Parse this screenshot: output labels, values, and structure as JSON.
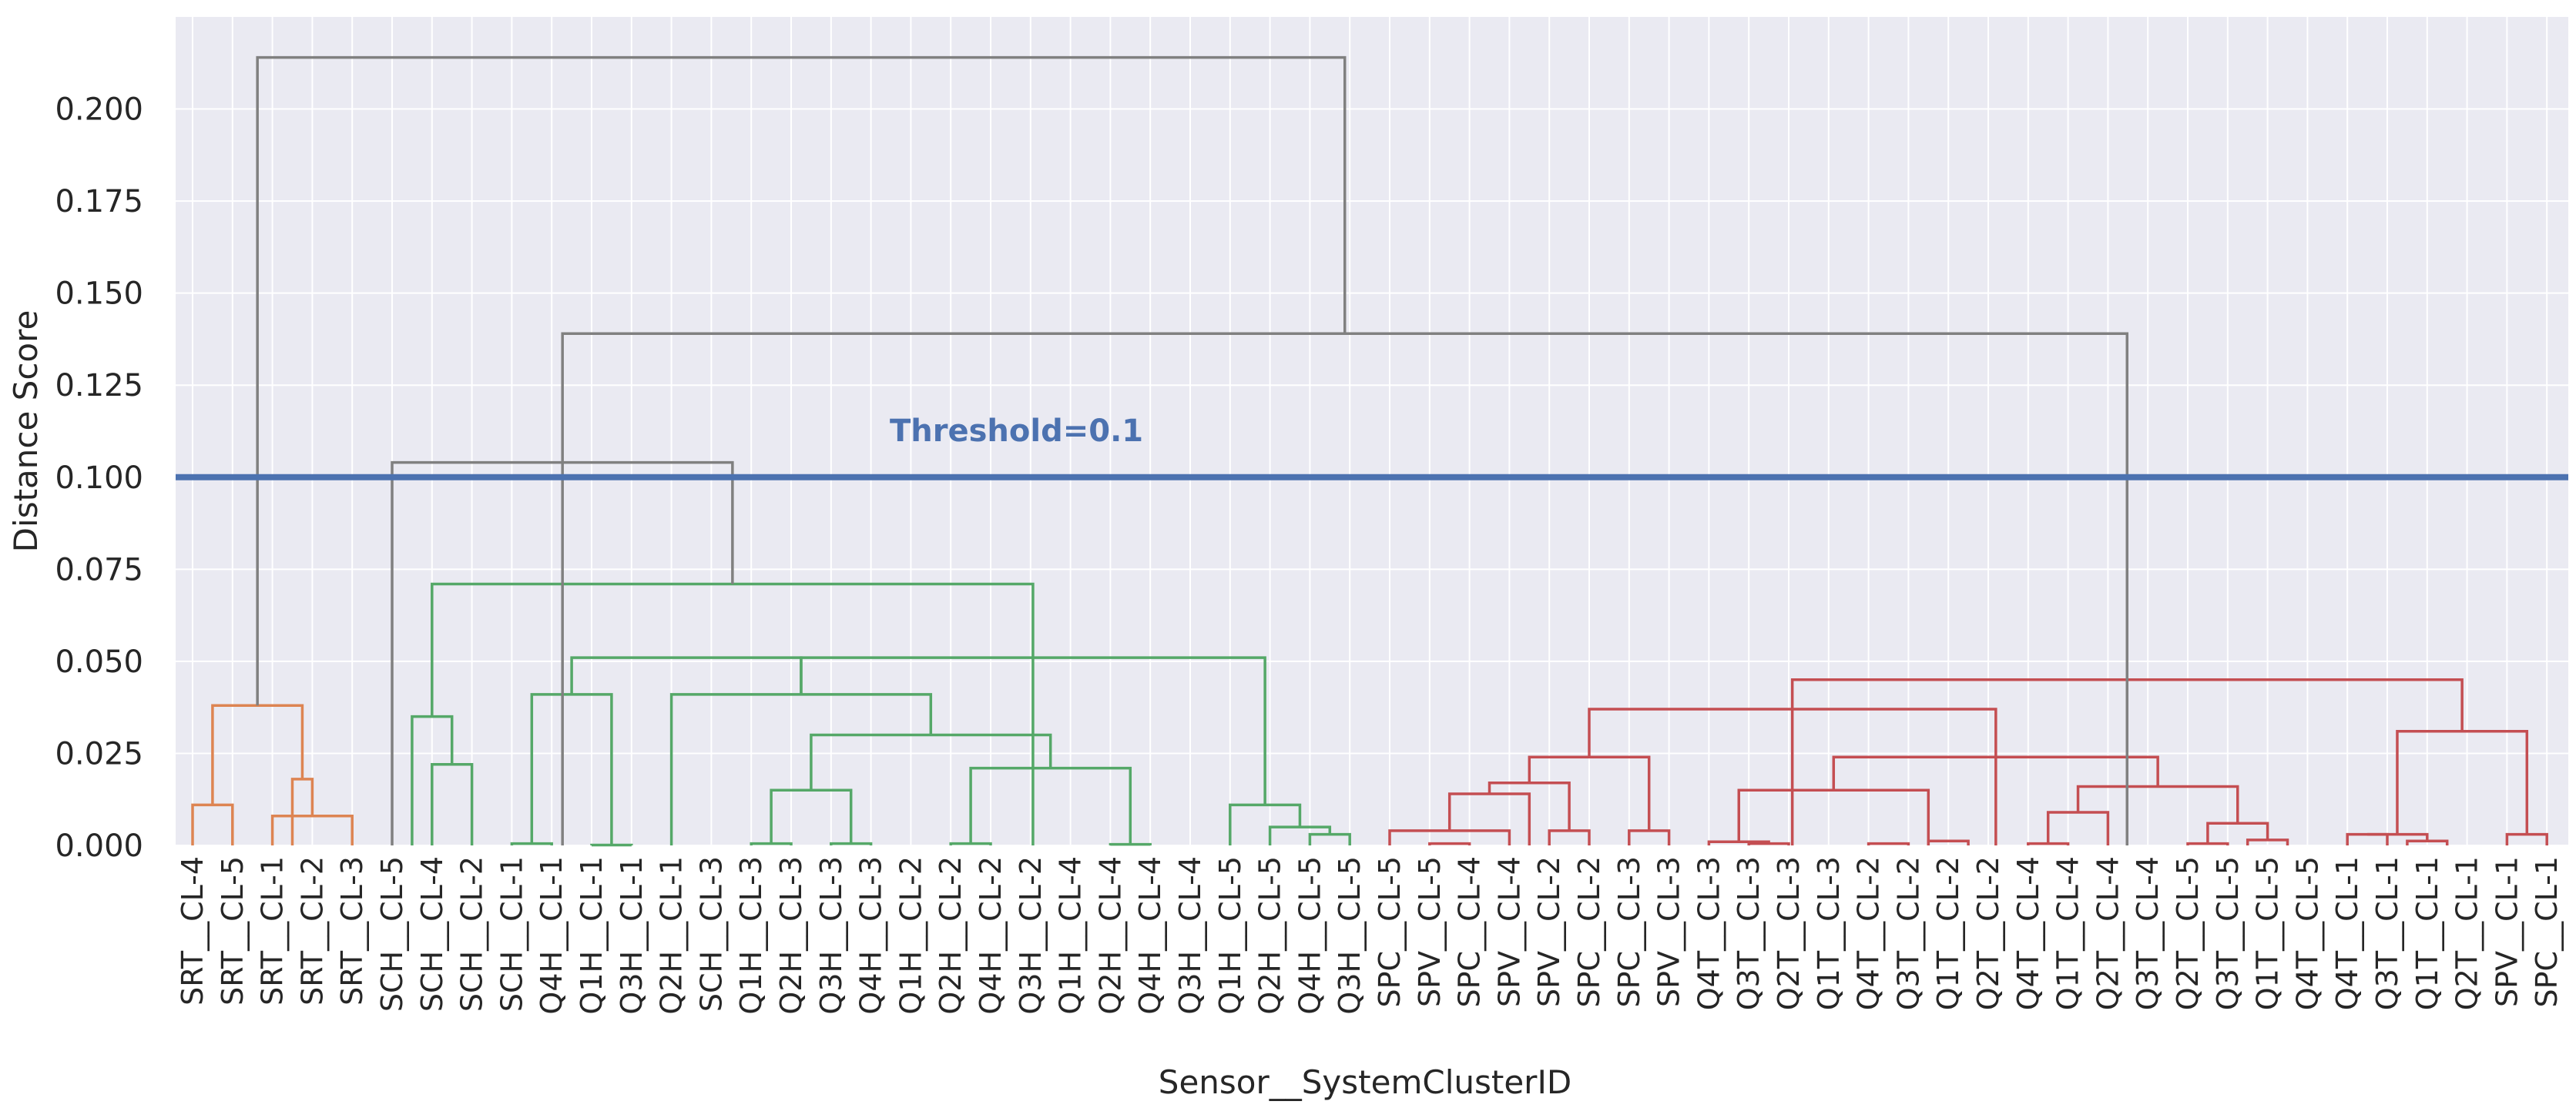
{
  "chart_data": {
    "type": "dendrogram",
    "xlabel": "Sensor__SystemClusterID",
    "ylabel": "Distance Score",
    "ylim": [
      0,
      0.225
    ],
    "yticks": [
      "0.000",
      "0.025",
      "0.050",
      "0.075",
      "0.100",
      "0.125",
      "0.150",
      "0.175",
      "0.200"
    ],
    "grid": true,
    "threshold": {
      "value": 0.1,
      "label": "Threshold=0.1",
      "color": "#4c72b0"
    },
    "colors": {
      "orange": "#dd8452",
      "green": "#55a868",
      "red": "#c44e52",
      "gray": "#808080",
      "background": "#eaeaf2"
    },
    "leaves": [
      "SRT__CL-4",
      "SRT__CL-5",
      "SRT__CL-1",
      "SRT__CL-2",
      "SRT__CL-3",
      "SCH__CL-5",
      "SCH__CL-4",
      "SCH__CL-2",
      "SCH__CL-1",
      "Q4H__CL-1",
      "Q1H__CL-1",
      "Q3H__CL-1",
      "Q2H__CL-1",
      "SCH__CL-3",
      "Q1H__CL-3",
      "Q2H__CL-3",
      "Q3H__CL-3",
      "Q4H__CL-3",
      "Q1H__CL-2",
      "Q2H__CL-2",
      "Q4H__CL-2",
      "Q3H__CL-2",
      "Q1H__CL-4",
      "Q2H__CL-4",
      "Q4H__CL-4",
      "Q3H__CL-4",
      "Q1H__CL-5",
      "Q2H__CL-5",
      "Q4H__CL-5",
      "Q3H__CL-5",
      "SPC__CL-5",
      "SPV__CL-5",
      "SPC__CL-4",
      "SPV__CL-4",
      "SPV__CL-2",
      "SPC__CL-2",
      "SPC__CL-3",
      "SPV__CL-3",
      "Q4T__CL-3",
      "Q3T__CL-3",
      "Q2T__CL-3",
      "Q1T__CL-3",
      "Q4T__CL-2",
      "Q3T__CL-2",
      "Q1T__CL-2",
      "Q2T__CL-2",
      "Q4T__CL-4",
      "Q1T__CL-4",
      "Q2T__CL-4",
      "Q3T__CL-4",
      "Q2T__CL-5",
      "Q3T__CL-5",
      "Q1T__CL-5",
      "Q4T__CL-5",
      "Q4T__CL-1",
      "Q3T__CL-1",
      "Q1T__CL-1",
      "Q2T__CL-1",
      "SPV__CL-1",
      "SPC__CL-1"
    ],
    "links": [
      [
        0,
        1,
        0.011,
        "orange"
      ],
      [
        2,
        4,
        0.008,
        "orange"
      ],
      [
        2.5,
        3,
        0.018,
        "orange"
      ],
      [
        0.5,
        2.75,
        0.038,
        "orange"
      ],
      [
        8,
        9,
        0.0005,
        "green"
      ],
      [
        10,
        11,
        0.0001,
        "green"
      ],
      [
        8.5,
        10.5,
        0.041,
        "green"
      ],
      [
        14,
        15,
        0.0005,
        "green"
      ],
      [
        16,
        17,
        0.0005,
        "green"
      ],
      [
        14.5,
        16.5,
        0.015,
        "green"
      ],
      [
        19,
        20,
        0.0005,
        "green"
      ],
      [
        23,
        24,
        0.0003,
        "green"
      ],
      [
        19.5,
        23.5,
        0.021,
        "green"
      ],
      [
        15.5,
        21.5,
        0.03,
        "green"
      ],
      [
        12,
        18.5,
        0.041,
        "green"
      ],
      [
        9.5,
        15.25,
        0.051,
        "green"
      ],
      [
        28,
        29,
        0.003,
        "green"
      ],
      [
        27,
        28.5,
        0.005,
        "green"
      ],
      [
        26,
        27.75,
        0.011,
        "green"
      ],
      [
        15.25,
        26.875,
        0.051,
        "green"
      ],
      [
        6,
        7,
        0.022,
        "green"
      ],
      [
        5.5,
        6.5,
        0.035,
        "green"
      ],
      [
        6,
        21.06,
        0.071,
        "green"
      ],
      [
        5,
        13.53,
        0.104,
        "gray"
      ],
      [
        31,
        32,
        0.0005,
        "red"
      ],
      [
        30,
        33,
        0.004,
        "red"
      ],
      [
        31.5,
        33.5,
        0.014,
        "red"
      ],
      [
        34,
        35,
        0.004,
        "red"
      ],
      [
        32.5,
        34.5,
        0.017,
        "red"
      ],
      [
        36,
        37,
        0.004,
        "red"
      ],
      [
        33.5,
        36.5,
        0.024,
        "red"
      ],
      [
        39,
        40,
        0.0005,
        "red"
      ],
      [
        38,
        39.5,
        0.001,
        "red"
      ],
      [
        42,
        43,
        0.0005,
        "red"
      ],
      [
        43.5,
        44.5,
        0.0012,
        "red"
      ],
      [
        38.75,
        43.5,
        0.015,
        "red"
      ],
      [
        46,
        47,
        0.0005,
        "red"
      ],
      [
        46.5,
        48,
        0.009,
        "red"
      ],
      [
        50,
        51,
        0.0005,
        "red"
      ],
      [
        51.5,
        52.5,
        0.0015,
        "red"
      ],
      [
        50.5,
        52,
        0.006,
        "red"
      ],
      [
        47.25,
        51.25,
        0.016,
        "red"
      ],
      [
        41.125,
        49.25,
        0.024,
        "red"
      ],
      [
        35,
        45.19,
        0.037,
        "red"
      ],
      [
        54,
        55,
        0.003,
        "red"
      ],
      [
        55.5,
        56.5,
        0.0012,
        "red"
      ],
      [
        54.5,
        56,
        0.003,
        "red"
      ],
      [
        58,
        59,
        0.003,
        "red"
      ],
      [
        55.25,
        58.5,
        0.031,
        "red"
      ],
      [
        40.09,
        56.875,
        0.045,
        "red"
      ],
      [
        9.27,
        48.48,
        0.139,
        "gray"
      ],
      [
        1.625,
        28.875,
        0.214,
        "gray"
      ]
    ]
  }
}
